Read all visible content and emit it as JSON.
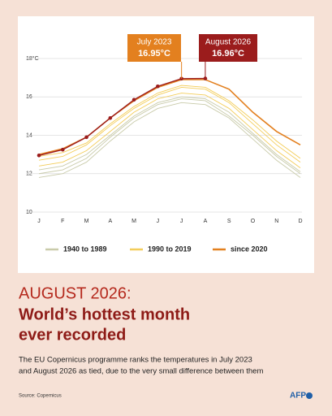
{
  "chart_data": {
    "type": "line",
    "categories": [
      "J",
      "F",
      "M",
      "A",
      "M",
      "J",
      "J",
      "A",
      "S",
      "O",
      "N",
      "D"
    ],
    "ylim": [
      10,
      18
    ],
    "yticks": [
      10,
      12,
      14,
      16,
      {
        "value": 18,
        "label": "18°C"
      }
    ],
    "grid": true,
    "groups": [
      {
        "name": "1940 to 1989",
        "color": "#c9cbaa",
        "series": [
          {
            "values": [
              11.8,
              12.0,
              12.6,
              13.7,
              14.7,
              15.4,
              15.7,
              15.6,
              14.9,
              13.8,
              12.7,
              11.8
            ]
          },
          {
            "values": [
              12.0,
              12.2,
              12.8,
              13.9,
              14.9,
              15.6,
              15.9,
              15.8,
              15.0,
              14.0,
              12.9,
              12.0
            ]
          },
          {
            "values": [
              12.2,
              12.4,
              13.0,
              14.0,
              15.0,
              15.7,
              16.0,
              15.9,
              15.2,
              14.1,
              13.0,
              12.1
            ]
          }
        ]
      },
      {
        "name": "1990 to 2019",
        "color": "#f3cd5a",
        "series": [
          {
            "values": [
              12.4,
              12.6,
              13.2,
              14.2,
              15.2,
              15.9,
              16.2,
              16.1,
              15.4,
              14.3,
              13.2,
              12.3
            ]
          },
          {
            "values": [
              12.7,
              12.9,
              13.5,
              14.5,
              15.4,
              16.1,
              16.5,
              16.4,
              15.7,
              14.6,
              13.5,
              12.6
            ]
          },
          {
            "values": [
              12.9,
              13.1,
              13.6,
              14.6,
              15.5,
              16.2,
              16.6,
              16.5,
              15.8,
              14.8,
              13.7,
              12.8
            ]
          }
        ]
      },
      {
        "name": "since 2020",
        "color": "#e3801f",
        "series": [
          {
            "values": [
              13.0,
              13.3,
              13.9,
              14.9,
              15.8,
              16.5,
              16.9,
              16.9,
              16.4,
              15.2,
              14.2,
              13.5
            ]
          }
        ]
      }
    ],
    "record": {
      "color": "#9b1c1c",
      "values": [
        12.95,
        13.25,
        13.9,
        14.9,
        15.85,
        16.55,
        16.95,
        16.96,
        null,
        null,
        null,
        null
      ]
    },
    "annotations": [
      {
        "label": "July 2023",
        "value": 16.95,
        "value_label": "16.95°C",
        "color": "#e3801f"
      },
      {
        "label": "August 2026",
        "value": 16.96,
        "value_label": "16.96°C",
        "color": "#9b1c1c"
      }
    ]
  },
  "kicker": "AUGUST 2026:",
  "headline": [
    "World’s hottest month",
    "ever recorded"
  ],
  "description": [
    "The EU Copernicus programme ranks the temperatures in July 2023",
    "and August 2026 as tied, due to the very small difference between them"
  ],
  "source": "Source: Copernicus",
  "logo": "AFP"
}
